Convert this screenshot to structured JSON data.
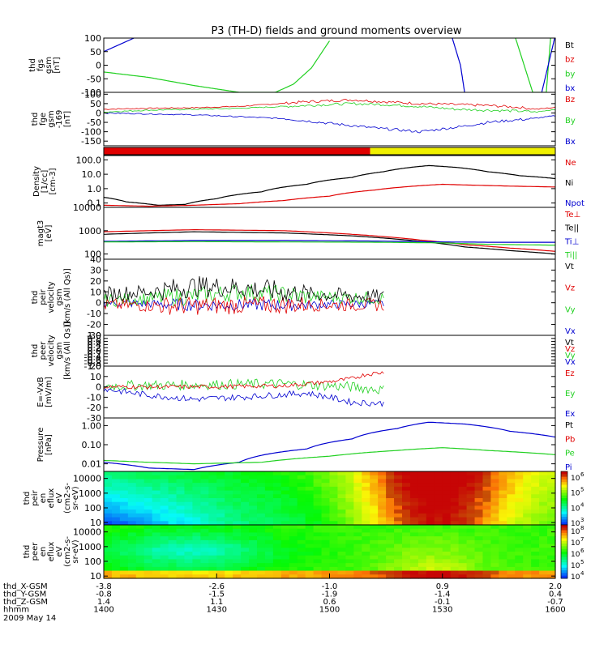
{
  "title": "P3 (TH-D) fields and ground moments overview",
  "date_label": "2009 May 14",
  "colors": {
    "black": "#000000",
    "red": "#e00000",
    "green": "#20d020",
    "blue": "#0000d0",
    "yellow": "#f0f000"
  },
  "chart_data": [
    {
      "id": "fgs",
      "type": "line",
      "ylabel": [
        "thd",
        "fgs",
        "gsm",
        "[nT]"
      ],
      "yticks": [
        "100",
        "50",
        "0",
        "-50",
        "-100"
      ],
      "ylim": [
        -100,
        100
      ],
      "scale": "linear",
      "legend": [
        {
          "label": "Bt",
          "color": "black"
        },
        {
          "label": "bz",
          "color": "red"
        },
        {
          "label": "by",
          "color": "green"
        },
        {
          "label": "bx",
          "color": "blue"
        }
      ],
      "series": [
        {
          "color": "blue",
          "x": [
            0,
            0.02,
            0.04,
            0.06,
            0.08
          ],
          "y": [
            50,
            65,
            80,
            95,
            110
          ]
        },
        {
          "color": "green",
          "x": [
            0,
            0.1,
            0.2,
            0.3,
            0.38,
            0.42,
            0.46,
            0.5
          ],
          "y": [
            -25,
            -45,
            -75,
            -100,
            -100,
            -70,
            -10,
            90
          ]
        },
        {
          "color": "blue",
          "x": [
            0.77,
            0.79,
            0.8
          ],
          "y": [
            110,
            0,
            -110
          ]
        },
        {
          "color": "green",
          "x": [
            0.91,
            0.95,
            0.98,
            0.99
          ],
          "y": [
            110,
            -100,
            -100,
            110
          ]
        },
        {
          "color": "blue",
          "x": [
            0.96,
            0.97,
            1.0
          ],
          "y": [
            -110,
            -100,
            110
          ]
        }
      ]
    },
    {
      "id": "fge",
      "type": "line",
      "ylabel": [
        "thd",
        "fge",
        "gsm",
        "-169",
        "[nT]"
      ],
      "yticks": [
        "100",
        "50",
        "0",
        "-50",
        "-100",
        "-150"
      ],
      "ylim": [
        -175,
        110
      ],
      "scale": "linear",
      "legend": [
        {
          "label": "Bz",
          "color": "red"
        },
        {
          "label": "By",
          "color": "green"
        },
        {
          "label": "Bx",
          "color": "blue"
        }
      ],
      "series": [
        {
          "color": "red",
          "x": [
            0,
            0.1,
            0.2,
            0.3,
            0.45,
            0.55,
            0.62,
            0.7,
            0.78,
            0.85,
            0.92,
            0.96,
            1.0
          ],
          "y": [
            20,
            25,
            28,
            35,
            60,
            70,
            60,
            50,
            45,
            40,
            30,
            20,
            30
          ]
        },
        {
          "color": "green",
          "x": [
            0,
            0.1,
            0.2,
            0.3,
            0.45,
            0.55,
            0.62,
            0.7,
            0.78,
            0.85,
            0.92,
            0.96,
            1.0
          ],
          "y": [
            5,
            15,
            20,
            25,
            40,
            50,
            45,
            35,
            20,
            15,
            10,
            5,
            20
          ]
        },
        {
          "color": "blue",
          "x": [
            0,
            0.1,
            0.2,
            0.3,
            0.4,
            0.5,
            0.6,
            0.7,
            0.75,
            0.8,
            0.85,
            0.9,
            0.95,
            1.0
          ],
          "y": [
            0,
            -5,
            -10,
            -20,
            -30,
            -55,
            -80,
            -100,
            -85,
            -70,
            -50,
            -40,
            -30,
            -15
          ]
        }
      ]
    },
    {
      "id": "mode",
      "type": "bar",
      "segments": [
        {
          "from": 0,
          "to": 0.59,
          "color": "red"
        },
        {
          "from": 0.59,
          "to": 1.0,
          "color": "yellow"
        }
      ]
    },
    {
      "id": "density",
      "type": "line",
      "ylabel": [
        "Density",
        "[1/cc]",
        "[cm-3]"
      ],
      "yticks": [
        "100.0",
        "10.0",
        "1.0",
        "0.1"
      ],
      "ylim": [
        0.05,
        200
      ],
      "scale": "log",
      "legend": [
        {
          "label": "Ne",
          "color": "red"
        },
        {
          "label": "Ni",
          "color": "black"
        },
        {
          "label": "Npot",
          "color": "blue"
        }
      ],
      "series": [
        {
          "color": "black",
          "x": [
            0,
            0.05,
            0.12,
            0.18,
            0.25,
            0.35,
            0.45,
            0.55,
            0.62,
            0.68,
            0.72,
            0.78,
            0.85,
            0.92,
            1.0
          ],
          "y": [
            0.25,
            0.12,
            0.07,
            0.08,
            0.2,
            0.6,
            2,
            6,
            15,
            30,
            40,
            30,
            15,
            8,
            5
          ]
        },
        {
          "color": "red",
          "x": [
            0,
            0.1,
            0.2,
            0.3,
            0.4,
            0.5,
            0.6,
            0.7,
            0.75,
            0.8,
            0.9,
            1.0
          ],
          "y": [
            0.07,
            0.06,
            0.07,
            0.09,
            0.15,
            0.3,
            0.8,
            1.6,
            2,
            1.8,
            1.5,
            1.3
          ]
        }
      ]
    },
    {
      "id": "temp",
      "type": "line",
      "ylabel": [
        "magt3",
        "[eV]"
      ],
      "yticks": [
        "10000",
        "1000",
        "100"
      ],
      "ylim": [
        60,
        10000
      ],
      "scale": "log",
      "legend": [
        {
          "label": "Te⊥",
          "color": "red"
        },
        {
          "label": "Te||",
          "color": "black"
        },
        {
          "label": "Ti⊥",
          "color": "blue"
        },
        {
          "label": "Ti||",
          "color": "green"
        }
      ],
      "series": [
        {
          "color": "red",
          "x": [
            0,
            0.2,
            0.4,
            0.55,
            0.7,
            0.8,
            0.9,
            1.0
          ],
          "y": [
            900,
            1100,
            1000,
            700,
            400,
            250,
            180,
            130
          ]
        },
        {
          "color": "black",
          "x": [
            0,
            0.2,
            0.4,
            0.55,
            0.7,
            0.8,
            0.9,
            1.0
          ],
          "y": [
            700,
            900,
            800,
            600,
            350,
            200,
            140,
            100
          ]
        },
        {
          "color": "blue",
          "x": [
            0,
            0.2,
            0.4,
            0.6,
            0.75,
            0.85,
            1.0
          ],
          "y": [
            350,
            380,
            380,
            360,
            330,
            320,
            320
          ]
        },
        {
          "color": "green",
          "x": [
            0,
            0.2,
            0.4,
            0.6,
            0.75,
            0.85,
            1.0
          ],
          "y": [
            330,
            340,
            330,
            320,
            300,
            260,
            240
          ]
        }
      ]
    },
    {
      "id": "peir_vel",
      "type": "line",
      "ylabel": [
        "thd",
        "peir",
        "velocity",
        "gsm",
        "[km/s (All Qs)]"
      ],
      "yticks": [
        "40",
        "30",
        "20",
        "10",
        "0",
        "-10",
        "-20",
        "-30"
      ],
      "ylim": [
        -30,
        40
      ],
      "scale": "linear",
      "noisy": true,
      "legend": [
        {
          "label": "Vt",
          "color": "black"
        },
        {
          "label": "Vz",
          "color": "red"
        },
        {
          "label": "Vy",
          "color": "green"
        },
        {
          "label": "Vx",
          "color": "blue"
        }
      ],
      "series": [
        {
          "color": "blue",
          "x": [
            0,
            0.2,
            0.4,
            0.62
          ],
          "y": [
            0,
            -2,
            -2,
            -1
          ],
          "noise": 4
        },
        {
          "color": "green",
          "x": [
            0,
            0.2,
            0.3,
            0.45,
            0.62
          ],
          "y": [
            2,
            6,
            10,
            6,
            4
          ],
          "noise": 6
        },
        {
          "color": "red",
          "x": [
            0,
            0.2,
            0.4,
            0.62
          ],
          "y": [
            -2,
            -3,
            -2,
            -2
          ],
          "noise": 6
        },
        {
          "color": "black",
          "x": [
            0,
            0.1,
            0.2,
            0.3,
            0.45,
            0.62
          ],
          "y": [
            8,
            10,
            15,
            14,
            8,
            5
          ],
          "noise": 7
        }
      ]
    },
    {
      "id": "peer_vel",
      "type": "line",
      "ylabel": [
        "thd",
        "peer",
        "velocity",
        "gsm",
        "[km/s (All Qs)]"
      ],
      "yticks": [
        "1.0",
        "0.8",
        "0.6",
        "0.4",
        "0.2",
        "0.0",
        "-0.2",
        "-0.4",
        "-0.6",
        "-0.8",
        "-1.0"
      ],
      "ylim": [
        -1,
        1
      ],
      "scale": "linear",
      "legend": [
        {
          "label": "Vt",
          "color": "black"
        },
        {
          "label": "Vz",
          "color": "red"
        },
        {
          "label": "Vy",
          "color": "green"
        },
        {
          "label": "Vx",
          "color": "blue"
        }
      ],
      "series": []
    },
    {
      "id": "efield",
      "type": "line",
      "ylabel": [
        "E=-VxB",
        "[mV/m]"
      ],
      "yticks": [
        "20",
        "10",
        "0",
        "-10",
        "-20",
        "-30"
      ],
      "ylim": [
        -30,
        20
      ],
      "scale": "linear",
      "noisy": true,
      "legend": [
        {
          "label": "Ez",
          "color": "red"
        },
        {
          "label": "Ey",
          "color": "green"
        },
        {
          "label": "Ex",
          "color": "blue"
        }
      ],
      "series": [
        {
          "color": "green",
          "x": [
            0,
            0.2,
            0.4,
            0.55,
            0.62
          ],
          "y": [
            1,
            2,
            3,
            0,
            -3
          ],
          "noise": 5
        },
        {
          "color": "red",
          "x": [
            0,
            0.2,
            0.4,
            0.5,
            0.55,
            0.58,
            0.62
          ],
          "y": [
            0,
            0,
            1,
            5,
            8,
            12,
            14
          ],
          "noise": 2
        },
        {
          "color": "blue",
          "x": [
            0,
            0.1,
            0.2,
            0.3,
            0.45,
            0.5,
            0.55,
            0.62
          ],
          "y": [
            -2,
            -8,
            -12,
            -10,
            -6,
            -10,
            -15,
            -16
          ],
          "noise": 3
        }
      ]
    },
    {
      "id": "pressure",
      "type": "line",
      "ylabel": [
        "Pressure",
        "[nPa]"
      ],
      "yticks": [
        "1.00",
        "0.10",
        "0.01"
      ],
      "ylim": [
        0.004,
        2.5
      ],
      "scale": "log",
      "legend": [
        {
          "label": "Pt",
          "color": "black"
        },
        {
          "label": "Pb",
          "color": "red"
        },
        {
          "label": "Pe",
          "color": "green"
        },
        {
          "label": "Pi",
          "color": "blue"
        }
      ],
      "series": [
        {
          "color": "blue",
          "x": [
            0,
            0.1,
            0.2,
            0.3,
            0.45,
            0.55,
            0.65,
            0.72,
            0.8,
            0.9,
            1.0
          ],
          "y": [
            0.012,
            0.006,
            0.005,
            0.012,
            0.06,
            0.2,
            0.7,
            1.5,
            1.2,
            0.5,
            0.25
          ]
        },
        {
          "color": "green",
          "x": [
            0,
            0.1,
            0.2,
            0.35,
            0.5,
            0.65,
            0.75,
            0.85,
            1.0
          ],
          "y": [
            0.015,
            0.012,
            0.01,
            0.012,
            0.025,
            0.05,
            0.07,
            0.05,
            0.03
          ]
        }
      ]
    },
    {
      "id": "peir_spec",
      "type": "heatmap",
      "ylabel": [
        "thd",
        "peir",
        "en",
        "eflux",
        "eV",
        "(cm2-s-",
        "sr-eV)"
      ],
      "yticks": [
        "10000",
        "1000",
        "100",
        "10"
      ],
      "ylim": [
        7,
        30000
      ],
      "scale": "log",
      "colorbar": [
        "10",
        "10",
        "10",
        "10"
      ],
      "colorbar_exp": [
        "6",
        "5",
        "4",
        "3"
      ]
    },
    {
      "id": "peer_spec",
      "type": "heatmap",
      "ylabel": [
        "thd",
        "peer",
        "en",
        "eflux",
        "eV",
        "(cm2-s-",
        "sr-eV)"
      ],
      "yticks": [
        "10000",
        "1000",
        "100",
        "10"
      ],
      "ylim": [
        7,
        30000
      ],
      "scale": "log",
      "colorbar": [
        "10",
        "10",
        "10",
        "10",
        "10"
      ],
      "colorbar_exp": [
        "8",
        "7",
        "6",
        "5",
        "4"
      ]
    }
  ],
  "xaxis": {
    "rows": [
      {
        "label": "thd_X-GSM",
        "values": [
          "-3.8",
          "-2.6",
          "-1.0",
          "0.9",
          "2.0"
        ]
      },
      {
        "label": "thd_Y-GSM",
        "values": [
          "-0.8",
          "-1.5",
          "-1.9",
          "-1.4",
          "0.4"
        ]
      },
      {
        "label": "thd_Z-GSM",
        "values": [
          "1.4",
          "1.1",
          "0.6",
          "-0.1",
          "-0.7"
        ]
      },
      {
        "label": "hhmm",
        "values": [
          "1400",
          "1430",
          "1500",
          "1530",
          "1600"
        ]
      }
    ]
  }
}
